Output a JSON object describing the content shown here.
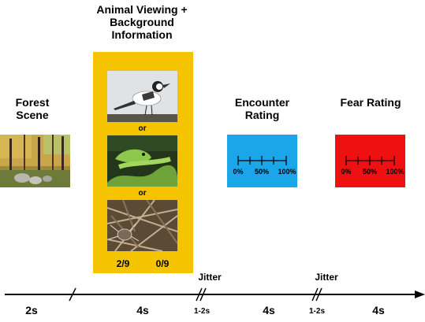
{
  "stages": {
    "forest": {
      "title": "Forest Scene",
      "image": "forest-photo"
    },
    "animal": {
      "title": "Animal Viewing + Background Information",
      "images": [
        "bird-photo",
        "snake-photo",
        "spider-photo"
      ],
      "separator": "or",
      "counts": [
        "2/9",
        "0/9"
      ],
      "panel_color": "#f5c400"
    },
    "encounter": {
      "title": "Encounter Rating",
      "panel_color": "#1aa6e8",
      "scale": [
        "0%",
        "50%",
        "100%"
      ]
    },
    "fear": {
      "title": "Fear Rating",
      "panel_color": "#ef1111",
      "scale": [
        "0%",
        "50%",
        "100%"
      ]
    }
  },
  "timeline": {
    "durations": [
      "2s",
      "4s",
      "4s",
      "4s"
    ],
    "jitter_label": "Jitter",
    "jitter_durations": [
      "1-2s",
      "1-2s"
    ]
  }
}
